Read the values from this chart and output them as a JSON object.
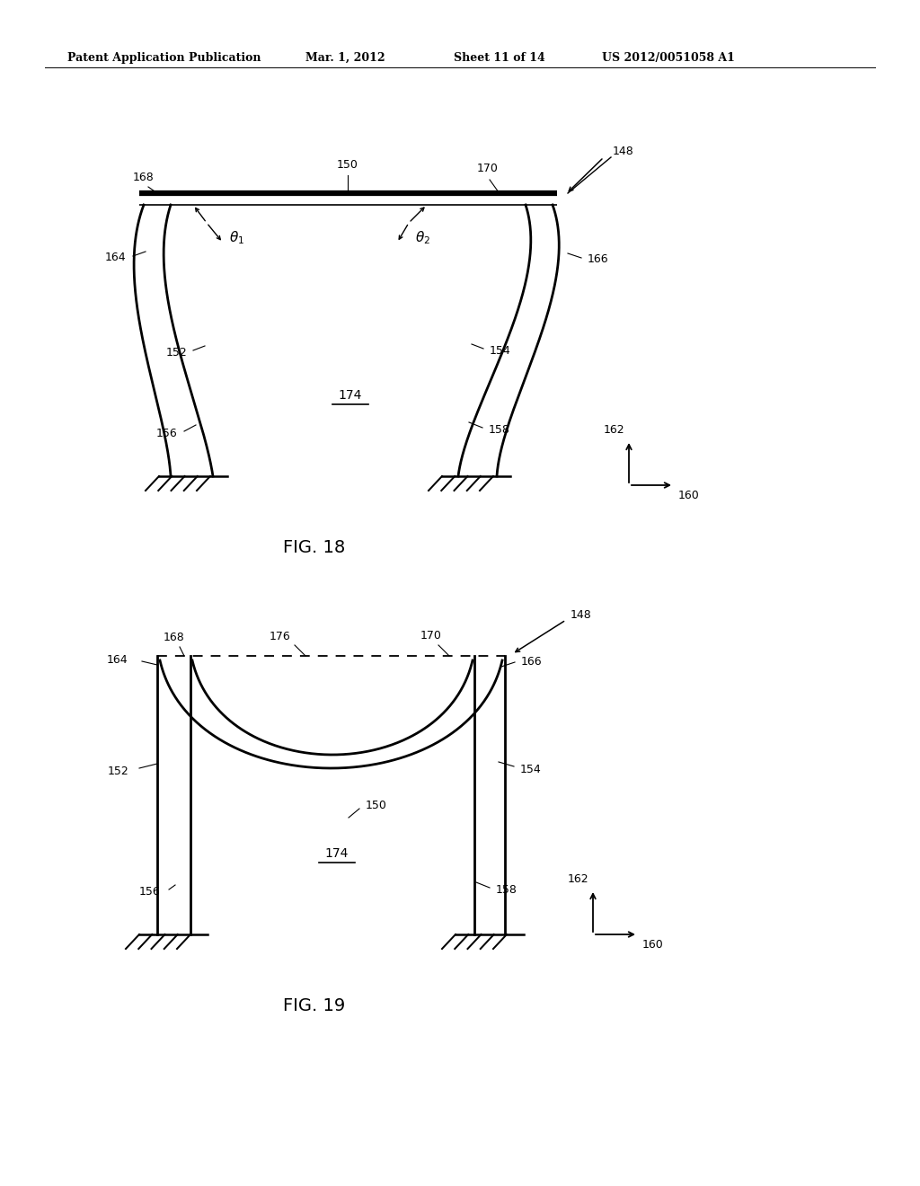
{
  "bg_color": "#ffffff",
  "line_color": "#000000",
  "header_text": "Patent Application Publication",
  "header_date": "Mar. 1, 2012",
  "header_sheet": "Sheet 11 of 14",
  "header_patent": "US 2012/0051058 A1",
  "fig18_title": "FIG. 18",
  "fig19_title": "FIG. 19"
}
